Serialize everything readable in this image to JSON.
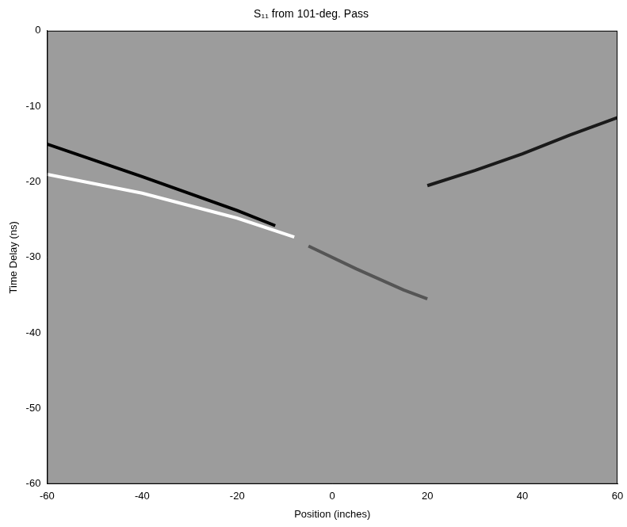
{
  "chart_data": {
    "type": "line",
    "title": "S₁₁ from 101-deg. Pass",
    "x_label": "Position (inches)",
    "y_label": "Time Delay (ns)",
    "xlim": [
      -60,
      60
    ],
    "ylim": [
      -60,
      0
    ],
    "xticks": [
      -60,
      -40,
      -20,
      0,
      20,
      40,
      60
    ],
    "yticks": [
      -60,
      -50,
      -40,
      -30,
      -20,
      -10,
      0
    ],
    "grid": false,
    "series": [
      {
        "color": "#000000",
        "x": [
          -60,
          -40,
          -20,
          -12
        ],
        "values": [
          -15,
          -19.3,
          -23.8,
          -25.8
        ]
      },
      {
        "color": "#ffffff",
        "x": [
          -60,
          -40,
          -20,
          -8
        ],
        "values": [
          -19,
          -21.5,
          -24.8,
          -27.3
        ]
      },
      {
        "color": "#1a1a1a",
        "x": [
          20,
          30,
          40,
          50,
          60
        ],
        "values": [
          -20.5,
          -18.5,
          -16.3,
          -13.8,
          -11.5
        ]
      },
      {
        "color": "#555555",
        "x": [
          -5,
          5,
          15,
          20
        ],
        "values": [
          -28.5,
          -31.5,
          -34.3,
          -35.5
        ]
      }
    ]
  }
}
